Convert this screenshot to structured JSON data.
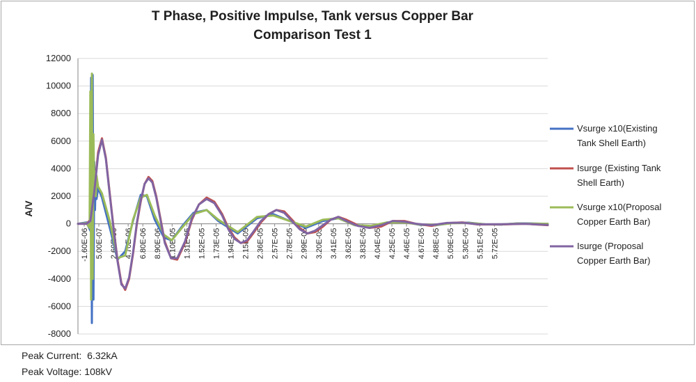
{
  "chart_data": {
    "type": "line",
    "title": [
      "T Phase, Positive Impulse, Tank versus Copper Bar",
      "Comparison Test 1"
    ],
    "ylabel": "A/V",
    "xlabel": "",
    "ylim": [
      -8000,
      12000
    ],
    "yticks": [
      -8000,
      -6000,
      -4000,
      -2000,
      0,
      2000,
      4000,
      6000,
      8000,
      10000,
      12000
    ],
    "x_unit": "s",
    "xlim": [
      -1.6e-06,
      5.9e-05
    ],
    "x_tick_labels": [
      "-1.60E-06",
      "5.00E-07",
      "2.60E-06",
      "4.70E-06",
      "6.80E-06",
      "8.90E-06",
      "1.10E-05",
      "1.31E-05",
      "1.52E-05",
      "1.73E-05",
      "1.94E-05",
      "2.15E-05",
      "2.36E-05",
      "2.57E-05",
      "2.78E-05",
      "2.99E-05",
      "3.20E-05",
      "3.41E-05",
      "3.62E-05",
      "3.83E-05",
      "4.04E-05",
      "4.25E-05",
      "4.46E-05",
      "4.67E-05",
      "4.88E-05",
      "5.09E-05",
      "5.30E-05",
      "5.51E-05",
      "5.72E-05"
    ],
    "grid": "horizontal",
    "legend_position": "right",
    "series": [
      {
        "name": "Vsurge x10(Existing Tank Shell Earth)",
        "color": "#4472c4",
        "x": [
          -1.6e-06,
          -5e-07,
          0,
          1e-07,
          2e-07,
          3e-07,
          4e-07,
          5e-07,
          6e-07,
          7e-07,
          8e-07,
          1e-06,
          1.5e-06,
          2.6e-06,
          3.5e-06,
          4.5e-06,
          5.5e-06,
          6.5e-06,
          7.3e-06,
          8.3e-06,
          9.5e-06,
          1.05e-05,
          1.18e-05,
          1.33e-05,
          1.5e-05,
          1.65e-05,
          1.9e-05,
          2.15e-05,
          2.36e-05,
          2.57e-05,
          2.78e-05,
          3e-05,
          3.2e-05,
          3.41e-05,
          3.62e-05,
          3.83e-05,
          4.04e-05,
          4.25e-05,
          4.46e-05,
          4.67e-05,
          4.88e-05,
          5.09e-05,
          5.3e-05,
          5.51e-05,
          5.72e-05,
          5.9e-05
        ],
        "y": [
          0,
          100,
          -500,
          10600,
          -7200,
          10800,
          -5500,
          4500,
          1000,
          3500,
          1800,
          2600,
          1900,
          -500,
          -2600,
          -2000,
          200,
          2100,
          2000,
          300,
          -1000,
          -1200,
          -200,
          800,
          1000,
          200,
          -700,
          400,
          700,
          200,
          -300,
          200,
          400,
          -100,
          -200,
          100,
          150,
          -80,
          -100,
          60,
          80,
          -40,
          -60,
          30,
          20,
          0
        ]
      },
      {
        "name": "Isurge (Existing Tank Shell Earth)",
        "color": "#c0504d",
        "x": [
          -1.6e-06,
          -5e-07,
          0,
          5e-07,
          1e-06,
          1.5e-06,
          2e-06,
          2.5e-06,
          3e-06,
          3.5e-06,
          4e-06,
          4.5e-06,
          5e-06,
          5.5e-06,
          6e-06,
          6.5e-06,
          7e-06,
          7.5e-06,
          8e-06,
          8.5e-06,
          9e-06,
          9.6e-06,
          1.04e-05,
          1.12e-05,
          1.22e-05,
          1.31e-05,
          1.4e-05,
          1.5e-05,
          1.6e-05,
          1.7e-05,
          1.78e-05,
          1.86e-05,
          1.94e-05,
          2.02e-05,
          2.1e-05,
          2.2e-05,
          2.3e-05,
          2.4e-05,
          2.5e-05,
          2.6e-05,
          2.7e-05,
          2.8e-05,
          2.9e-05,
          3e-05,
          3.1e-05,
          3.2e-05,
          3.3e-05,
          3.45e-05,
          3.6e-05,
          3.75e-05,
          3.9e-05,
          4.05e-05,
          4.2e-05,
          4.4e-05,
          4.6e-05,
          4.8e-05,
          5e-05,
          5.3e-05,
          5.6e-05,
          5.9e-05
        ],
        "y": [
          0,
          0,
          300,
          2500,
          5200,
          6200,
          4800,
          2200,
          -300,
          -2600,
          -4300,
          -4800,
          -4000,
          -2200,
          0,
          1600,
          2900,
          3400,
          3100,
          2000,
          500,
          -1300,
          -2500,
          -2600,
          -1400,
          300,
          1400,
          1900,
          1600,
          700,
          -300,
          -1000,
          -1400,
          -1300,
          -700,
          100,
          700,
          1000,
          900,
          300,
          -300,
          -700,
          -600,
          -200,
          300,
          500,
          300,
          -100,
          -300,
          -200,
          200,
          200,
          0,
          -150,
          50,
          100,
          -50,
          -50,
          0,
          -100
        ]
      },
      {
        "name": "Vsurge x10(Proposal Copper Earth Bar)",
        "color": "#9bbb59",
        "x": [
          -1.6e-06,
          -5e-07,
          -1e-07,
          0,
          1e-07,
          2e-07,
          3e-07,
          4e-07,
          5e-07,
          6e-07,
          7e-07,
          8e-07,
          1e-06,
          1.5e-06,
          2.5e-06,
          3.5e-06,
          4.5e-06,
          5.5e-06,
          6.5e-06,
          7.3e-06,
          8.3e-06,
          9.5e-06,
          1.05e-05,
          1.18e-05,
          1.33e-05,
          1.5e-05,
          1.65e-05,
          1.9e-05,
          2.15e-05,
          2.36e-05,
          2.57e-05,
          2.78e-05,
          3e-05,
          3.2e-05,
          3.41e-05,
          3.62e-05,
          3.83e-05,
          4.04e-05,
          4.25e-05,
          4.46e-05,
          4.67e-05,
          4.88e-05,
          5.09e-05,
          5.3e-05,
          5.51e-05,
          5.72e-05,
          5.9e-05
        ],
        "y": [
          0,
          50,
          -300,
          9600,
          -5500,
          10900,
          -4000,
          6500,
          2500,
          3800,
          2000,
          3500,
          2700,
          2200,
          200,
          -2500,
          -2300,
          300,
          1900,
          2100,
          600,
          -800,
          -1200,
          -300,
          700,
          1000,
          300,
          -600,
          500,
          600,
          200,
          -200,
          300,
          400,
          -100,
          -150,
          100,
          100,
          -60,
          -80,
          40,
          60,
          -30,
          -40,
          20,
          10,
          0
        ]
      },
      {
        "name": "Isurge (Proposal Copper Earth Bar)",
        "color": "#8064a2",
        "x": [
          -1.6e-06,
          -5e-07,
          0,
          5e-07,
          1e-06,
          1.5e-06,
          2e-06,
          2.5e-06,
          3e-06,
          3.5e-06,
          4e-06,
          4.5e-06,
          5e-06,
          5.5e-06,
          6e-06,
          6.5e-06,
          7e-06,
          7.5e-06,
          8e-06,
          8.5e-06,
          9e-06,
          9.6e-06,
          1.04e-05,
          1.12e-05,
          1.22e-05,
          1.31e-05,
          1.4e-05,
          1.5e-05,
          1.6e-05,
          1.7e-05,
          1.78e-05,
          1.86e-05,
          1.94e-05,
          2.02e-05,
          2.1e-05,
          2.2e-05,
          2.3e-05,
          2.4e-05,
          2.5e-05,
          2.6e-05,
          2.7e-05,
          2.8e-05,
          2.9e-05,
          3e-05,
          3.1e-05,
          3.2e-05,
          3.3e-05,
          3.45e-05,
          3.6e-05,
          3.75e-05,
          3.9e-05,
          4.05e-05,
          4.2e-05,
          4.4e-05,
          4.6e-05,
          4.8e-05,
          5e-05,
          5.3e-05,
          5.6e-05,
          5.9e-05
        ],
        "y": [
          0,
          0,
          200,
          2300,
          5000,
          6100,
          4700,
          2100,
          -400,
          -2700,
          -4400,
          -4700,
          -3900,
          -2100,
          100,
          1700,
          2900,
          3300,
          3000,
          1900,
          400,
          -1400,
          -2500,
          -2500,
          -1300,
          400,
          1400,
          1800,
          1500,
          600,
          -400,
          -1100,
          -1400,
          -1200,
          -600,
          200,
          700,
          1000,
          800,
          200,
          -400,
          -700,
          -500,
          -100,
          300,
          500,
          200,
          -150,
          -300,
          -100,
          200,
          150,
          0,
          -100,
          60,
          80,
          -40,
          -30,
          0,
          -80
        ]
      }
    ]
  },
  "notes": {
    "peak_current": "Peak Current:  6.32kA",
    "peak_voltage": "Peak Voltage: 108kV"
  }
}
